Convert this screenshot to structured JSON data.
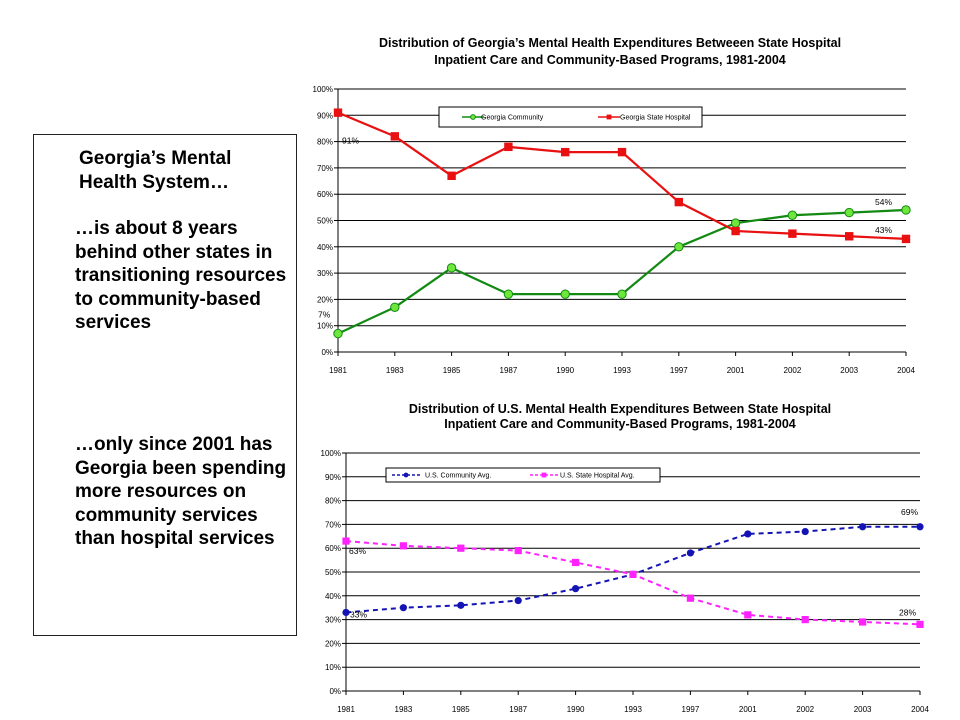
{
  "textbox": {
    "heading": "Georgia’s Mental Health System…",
    "point1": "…is about 8 years behind other states in transitioning resources to community-based services",
    "point2": "…only since 2001 has Georgia been spending more resources on community services than hospital services"
  },
  "chart_data": [
    {
      "type": "line",
      "title": [
        "Distribution of Georgia’s Mental Health Expenditures Betweeen State Hospital",
        "Inpatient Care and Community-Based Programs, 1981-2004"
      ],
      "categories": [
        "1981",
        "1983",
        "1985",
        "1987",
        "1990",
        "1993",
        "1997",
        "2001",
        "2002",
        "2003",
        "2004"
      ],
      "ylim": [
        0,
        100
      ],
      "yticks": [
        "0%",
        "10%",
        "20%",
        "30%",
        "40%",
        "50%",
        "60%",
        "70%",
        "80%",
        "90%",
        "100%"
      ],
      "grid": true,
      "legend_position": "top",
      "series": [
        {
          "name": "Georgia Community",
          "color": "#128a12",
          "marker": "circle",
          "dashed": false,
          "values": [
            7,
            17,
            32,
            22,
            22,
            22,
            40,
            49,
            52,
            53,
            54
          ]
        },
        {
          "name": "Georgia State Hospital",
          "color": "#e81010",
          "marker": "square",
          "dashed": false,
          "values": [
            91,
            82,
            67,
            78,
            76,
            76,
            57,
            46,
            45,
            44,
            43
          ]
        }
      ],
      "annotations": [
        {
          "text": "91%",
          "series": 1,
          "index": 0
        },
        {
          "text": "7%",
          "series": 0,
          "index": 0
        },
        {
          "text": "54%",
          "series": 0,
          "index": 10
        },
        {
          "text": "43%",
          "series": 1,
          "index": 10
        }
      ]
    },
    {
      "type": "line",
      "title": [
        "Distribution of U.S. Mental Health Expenditures Between State Hospital",
        "Inpatient Care and Community-Based Programs, 1981-2004"
      ],
      "categories": [
        "1981",
        "1983",
        "1985",
        "1987",
        "1990",
        "1993",
        "1997",
        "2001",
        "2002",
        "2003",
        "2004"
      ],
      "ylim": [
        0,
        100
      ],
      "yticks": [
        "0%",
        "10%",
        "20%",
        "30%",
        "40%",
        "50%",
        "60%",
        "70%",
        "80%",
        "90%",
        "100%"
      ],
      "grid": true,
      "legend_position": "top",
      "series": [
        {
          "name": "U.S. Community Avg.",
          "color": "#1414b4",
          "marker": "diamond",
          "dashed": true,
          "values": [
            33,
            35,
            36,
            38,
            43,
            49,
            58,
            66,
            67,
            69,
            69
          ]
        },
        {
          "name": "U.S. State Hospital Avg.",
          "color": "#ff22ff",
          "marker": "square",
          "dashed": true,
          "values": [
            63,
            61,
            60,
            59,
            54,
            49,
            39,
            32,
            30,
            29,
            28
          ]
        }
      ],
      "annotations": [
        {
          "text": "63%",
          "series": 1,
          "index": 0
        },
        {
          "text": "33%",
          "series": 0,
          "index": 0
        },
        {
          "text": "69%",
          "series": 0,
          "index": 10
        },
        {
          "text": "28%",
          "series": 1,
          "index": 10
        }
      ]
    }
  ]
}
